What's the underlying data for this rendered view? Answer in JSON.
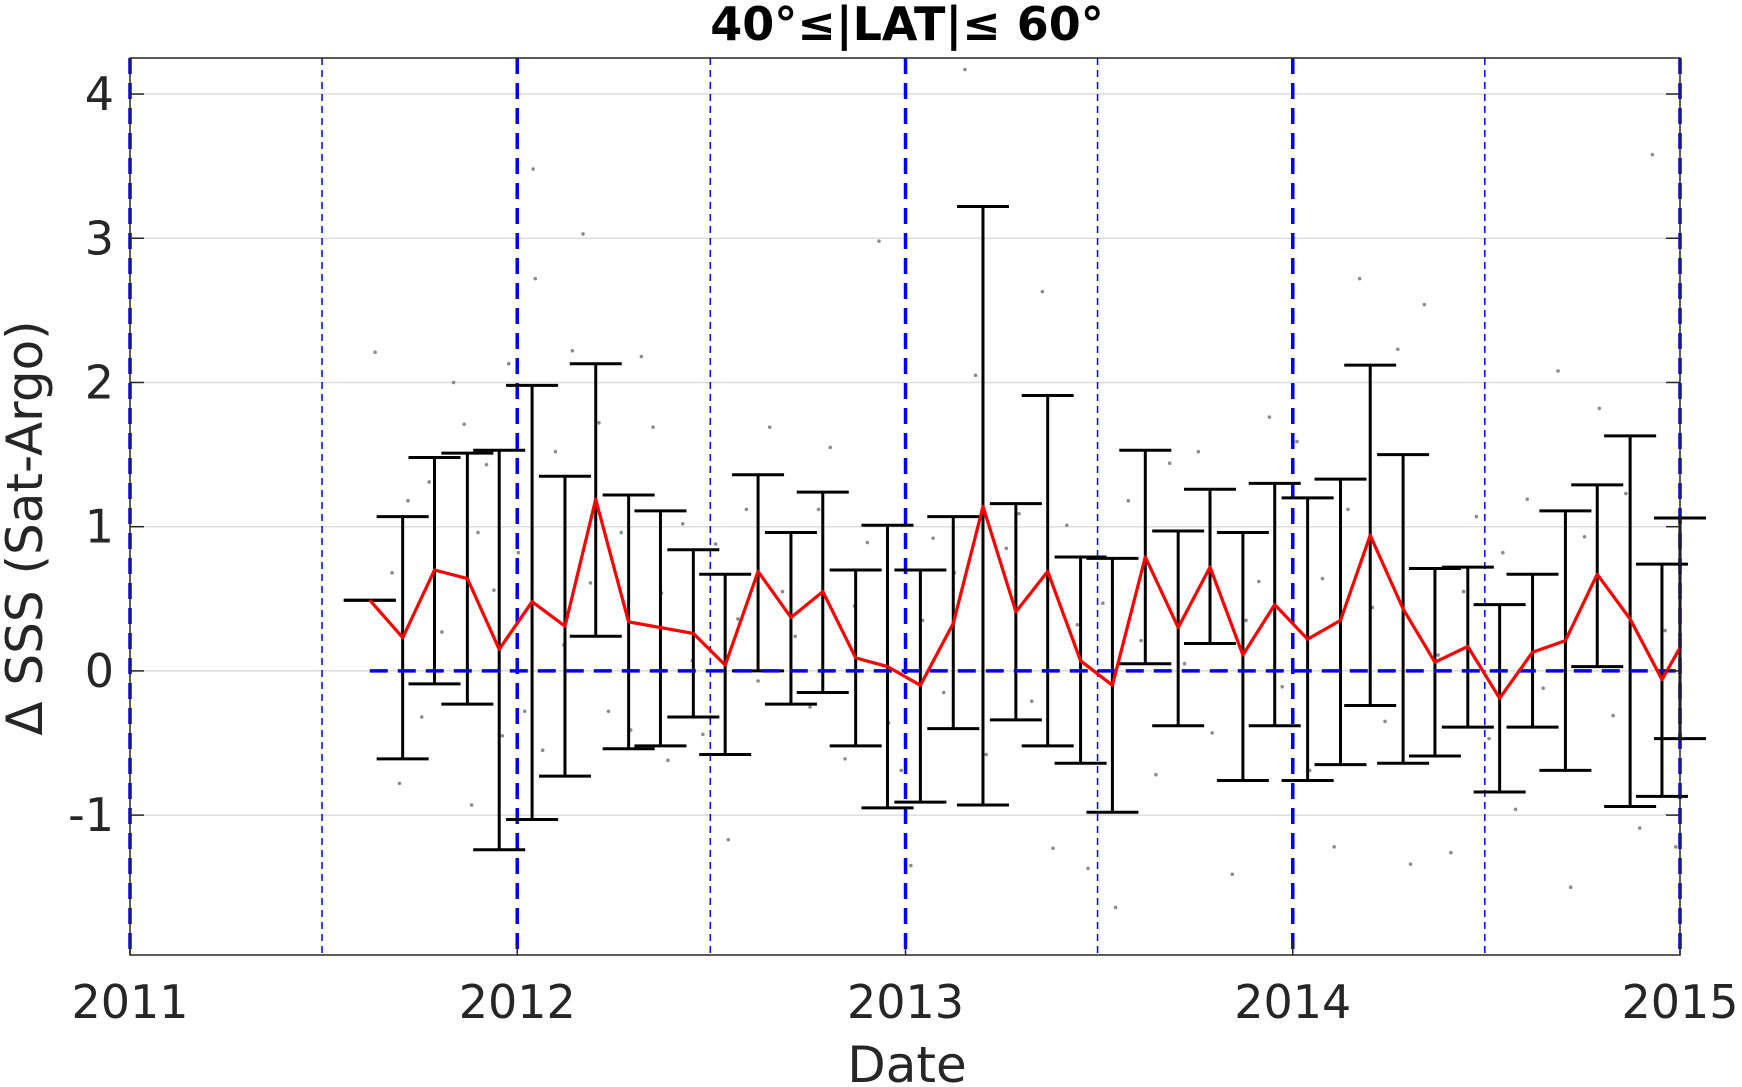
{
  "chart_data": {
    "type": "line",
    "title": "40°≤|LAT|≤ 60°",
    "xlabel": "Date",
    "ylabel": "Δ SSS (Sat-Argo)",
    "x_tick_labels": [
      "2011",
      "2012",
      "2013",
      "2014",
      "2015"
    ],
    "y_tick_labels": [
      "-1",
      "0",
      "1",
      "2",
      "3",
      "4"
    ],
    "y_ticks": [
      -1,
      0,
      1,
      2,
      3,
      4
    ],
    "xlim": [
      "2011-01-01",
      "2015-01-01"
    ],
    "ylim": [
      -1.97,
      4.25
    ],
    "grid": "horizontal",
    "vertical_markers": {
      "years": [
        "2011-01-01",
        "2012-01-01",
        "2013-01-01",
        "2014-01-01",
        "2015-01-01"
      ],
      "mid_years": [
        "2011-07-01",
        "2012-07-01",
        "2013-07-01",
        "2014-07-01"
      ]
    },
    "reference_line": {
      "y": 0,
      "from": "2011-08-15",
      "to": "2015-01-01"
    },
    "series": [
      {
        "style": "red line with black error bars",
        "x": [
          "2011-08-15",
          "2011-09-15",
          "2011-10-15",
          "2011-11-15",
          "2011-12-15",
          "2012-01-15",
          "2012-02-15",
          "2012-03-15",
          "2012-04-15",
          "2012-05-15",
          "2012-06-15",
          "2012-07-15",
          "2012-08-15",
          "2012-09-15",
          "2012-10-15",
          "2012-11-15",
          "2012-12-15",
          "2013-01-15",
          "2013-02-15",
          "2013-03-15",
          "2013-04-15",
          "2013-05-15",
          "2013-06-15",
          "2013-07-15",
          "2013-08-15",
          "2013-09-15",
          "2013-10-15",
          "2013-11-15",
          "2013-12-15",
          "2014-01-15",
          "2014-02-15",
          "2014-03-15",
          "2014-04-15",
          "2014-05-15",
          "2014-06-15",
          "2014-07-15",
          "2014-08-15",
          "2014-09-15",
          "2014-10-15",
          "2014-11-15",
          "2014-12-15",
          "2015-01-01"
        ],
        "y": [
          0.49,
          0.23,
          0.7,
          0.64,
          0.15,
          0.48,
          0.31,
          1.19,
          0.34,
          0.3,
          0.26,
          0.04,
          0.69,
          0.37,
          0.55,
          0.09,
          0.03,
          -0.1,
          0.33,
          1.14,
          0.41,
          0.69,
          0.07,
          -0.1,
          0.79,
          0.3,
          0.72,
          0.11,
          0.46,
          0.22,
          0.35,
          0.94,
          0.43,
          0.06,
          0.17,
          -0.19,
          0.13,
          0.21,
          0.67,
          0.36,
          -0.06,
          0.16
        ],
        "lower": [
          0.49,
          -0.61,
          -0.09,
          -0.23,
          -1.24,
          -1.03,
          -0.73,
          0.24,
          -0.54,
          -0.52,
          -0.32,
          -0.58,
          0.0,
          -0.23,
          -0.15,
          -0.52,
          -0.95,
          -0.91,
          -0.4,
          -0.93,
          -0.34,
          -0.52,
          -0.64,
          -0.98,
          0.05,
          -0.38,
          0.19,
          -0.76,
          -0.38,
          -0.76,
          -0.65,
          -0.24,
          -0.64,
          -0.59,
          -0.39,
          -0.84,
          -0.39,
          -0.69,
          0.03,
          -0.94,
          -0.87,
          -0.47
        ],
        "upper": [
          0.49,
          1.07,
          1.48,
          1.51,
          1.53,
          1.98,
          1.35,
          2.13,
          1.22,
          1.11,
          0.84,
          0.67,
          1.36,
          0.96,
          1.24,
          0.7,
          1.01,
          0.7,
          1.07,
          3.22,
          1.16,
          1.91,
          0.79,
          0.78,
          1.53,
          0.97,
          1.26,
          0.96,
          1.3,
          1.2,
          1.33,
          2.12,
          1.5,
          0.71,
          0.72,
          0.46,
          0.67,
          1.11,
          1.29,
          1.63,
          0.74,
          1.06
        ]
      }
    ],
    "scatter_points": [
      [
        "2011-08-20",
        2.21
      ],
      [
        "2011-09-05",
        0.68
      ],
      [
        "2011-09-12",
        -0.78
      ],
      [
        "2011-09-20",
        1.18
      ],
      [
        "2011-10-03",
        -0.32
      ],
      [
        "2011-10-10",
        1.31
      ],
      [
        "2011-10-22",
        0.27
      ],
      [
        "2011-11-02",
        2.0
      ],
      [
        "2011-11-12",
        1.71
      ],
      [
        "2011-11-19",
        -0.93
      ],
      [
        "2011-11-25",
        0.96
      ],
      [
        "2011-12-03",
        1.43
      ],
      [
        "2011-12-10",
        0.56
      ],
      [
        "2011-12-18",
        -0.45
      ],
      [
        "2011-12-24",
        2.13
      ],
      [
        "2012-01-02",
        0.82
      ],
      [
        "2012-01-08",
        -0.28
      ],
      [
        "2012-01-16",
        3.48
      ],
      [
        "2012-01-18",
        2.72
      ],
      [
        "2012-01-25",
        -0.55
      ],
      [
        "2012-02-06",
        1.52
      ],
      [
        "2012-02-14",
        0.18
      ],
      [
        "2012-02-22",
        2.22
      ],
      [
        "2012-03-03",
        3.03
      ],
      [
        "2012-03-10",
        0.61
      ],
      [
        "2012-03-18",
        1.72
      ],
      [
        "2012-03-27",
        -0.28
      ],
      [
        "2012-04-08",
        0.96
      ],
      [
        "2012-04-17",
        -0.41
      ],
      [
        "2012-04-27",
        2.18
      ],
      [
        "2012-05-08",
        1.69
      ],
      [
        "2012-05-16",
        0.54
      ],
      [
        "2012-05-22",
        -0.62
      ],
      [
        "2012-06-05",
        1.02
      ],
      [
        "2012-06-14",
        0.07
      ],
      [
        "2012-06-24",
        -0.44
      ],
      [
        "2012-07-06",
        0.88
      ],
      [
        "2012-07-18",
        -1.17
      ],
      [
        "2012-07-27",
        0.36
      ],
      [
        "2012-08-04",
        1.12
      ],
      [
        "2012-08-15",
        -0.07
      ],
      [
        "2012-08-26",
        1.69
      ],
      [
        "2012-09-07",
        0.55
      ],
      [
        "2012-09-19",
        0.24
      ],
      [
        "2012-10-03",
        -0.25
      ],
      [
        "2012-10-11",
        1.12
      ],
      [
        "2012-10-22",
        1.55
      ],
      [
        "2012-11-05",
        -0.61
      ],
      [
        "2012-11-14",
        0.45
      ],
      [
        "2012-11-26",
        0.89
      ],
      [
        "2012-12-07",
        2.98
      ],
      [
        "2012-12-16",
        -0.36
      ],
      [
        "2012-12-28",
        -0.69
      ],
      [
        "2013-01-06",
        -1.35
      ],
      [
        "2013-01-17",
        0.35
      ],
      [
        "2013-01-27",
        0.92
      ],
      [
        "2013-02-06",
        -0.15
      ],
      [
        "2013-02-16",
        0.68
      ],
      [
        "2013-02-26",
        4.17
      ],
      [
        "2013-03-08",
        2.05
      ],
      [
        "2013-03-18",
        -0.58
      ],
      [
        "2013-04-06",
        0.85
      ],
      [
        "2013-04-18",
        1.09
      ],
      [
        "2013-04-30",
        -0.21
      ],
      [
        "2013-05-10",
        2.63
      ],
      [
        "2013-05-20",
        -1.23
      ],
      [
        "2013-06-02",
        1.01
      ],
      [
        "2013-06-12",
        0.32
      ],
      [
        "2013-06-22",
        -1.37
      ],
      [
        "2013-07-06",
        0.47
      ],
      [
        "2013-07-18",
        -1.64
      ],
      [
        "2013-07-30",
        1.18
      ],
      [
        "2013-08-11",
        0.21
      ],
      [
        "2013-08-25",
        -0.72
      ],
      [
        "2013-09-07",
        1.44
      ],
      [
        "2013-09-21",
        0.05
      ],
      [
        "2013-10-04",
        1.52
      ],
      [
        "2013-10-17",
        -0.43
      ],
      [
        "2013-11-05",
        -1.41
      ],
      [
        "2013-11-18",
        0.35
      ],
      [
        "2013-11-30",
        0.62
      ],
      [
        "2013-12-10",
        1.76
      ],
      [
        "2013-12-22",
        -0.11
      ],
      [
        "2014-01-05",
        1.59
      ],
      [
        "2014-01-17",
        -0.69
      ],
      [
        "2014-01-29",
        0.64
      ],
      [
        "2014-02-09",
        -1.22
      ],
      [
        "2014-02-22",
        1.12
      ],
      [
        "2014-03-05",
        2.72
      ],
      [
        "2014-03-17",
        0.44
      ],
      [
        "2014-03-29",
        -0.35
      ],
      [
        "2014-04-10",
        2.23
      ],
      [
        "2014-04-22",
        -1.34
      ],
      [
        "2014-05-05",
        2.54
      ],
      [
        "2014-05-18",
        0.11
      ],
      [
        "2014-05-30",
        -1.26
      ],
      [
        "2014-06-11",
        0.55
      ],
      [
        "2014-06-23",
        1.07
      ],
      [
        "2014-07-05",
        -0.47
      ],
      [
        "2014-07-18",
        0.82
      ],
      [
        "2014-07-30",
        -0.96
      ],
      [
        "2014-08-10",
        1.19
      ],
      [
        "2014-08-25",
        -0.12
      ],
      [
        "2014-09-08",
        2.08
      ],
      [
        "2014-09-20",
        -1.5
      ],
      [
        "2014-10-03",
        0.93
      ],
      [
        "2014-10-17",
        1.82
      ],
      [
        "2014-10-30",
        -0.31
      ],
      [
        "2014-11-11",
        1.23
      ],
      [
        "2014-11-24",
        -1.09
      ],
      [
        "2014-12-06",
        3.58
      ],
      [
        "2014-12-18",
        0.28
      ],
      [
        "2014-12-28",
        -1.22
      ]
    ]
  }
}
